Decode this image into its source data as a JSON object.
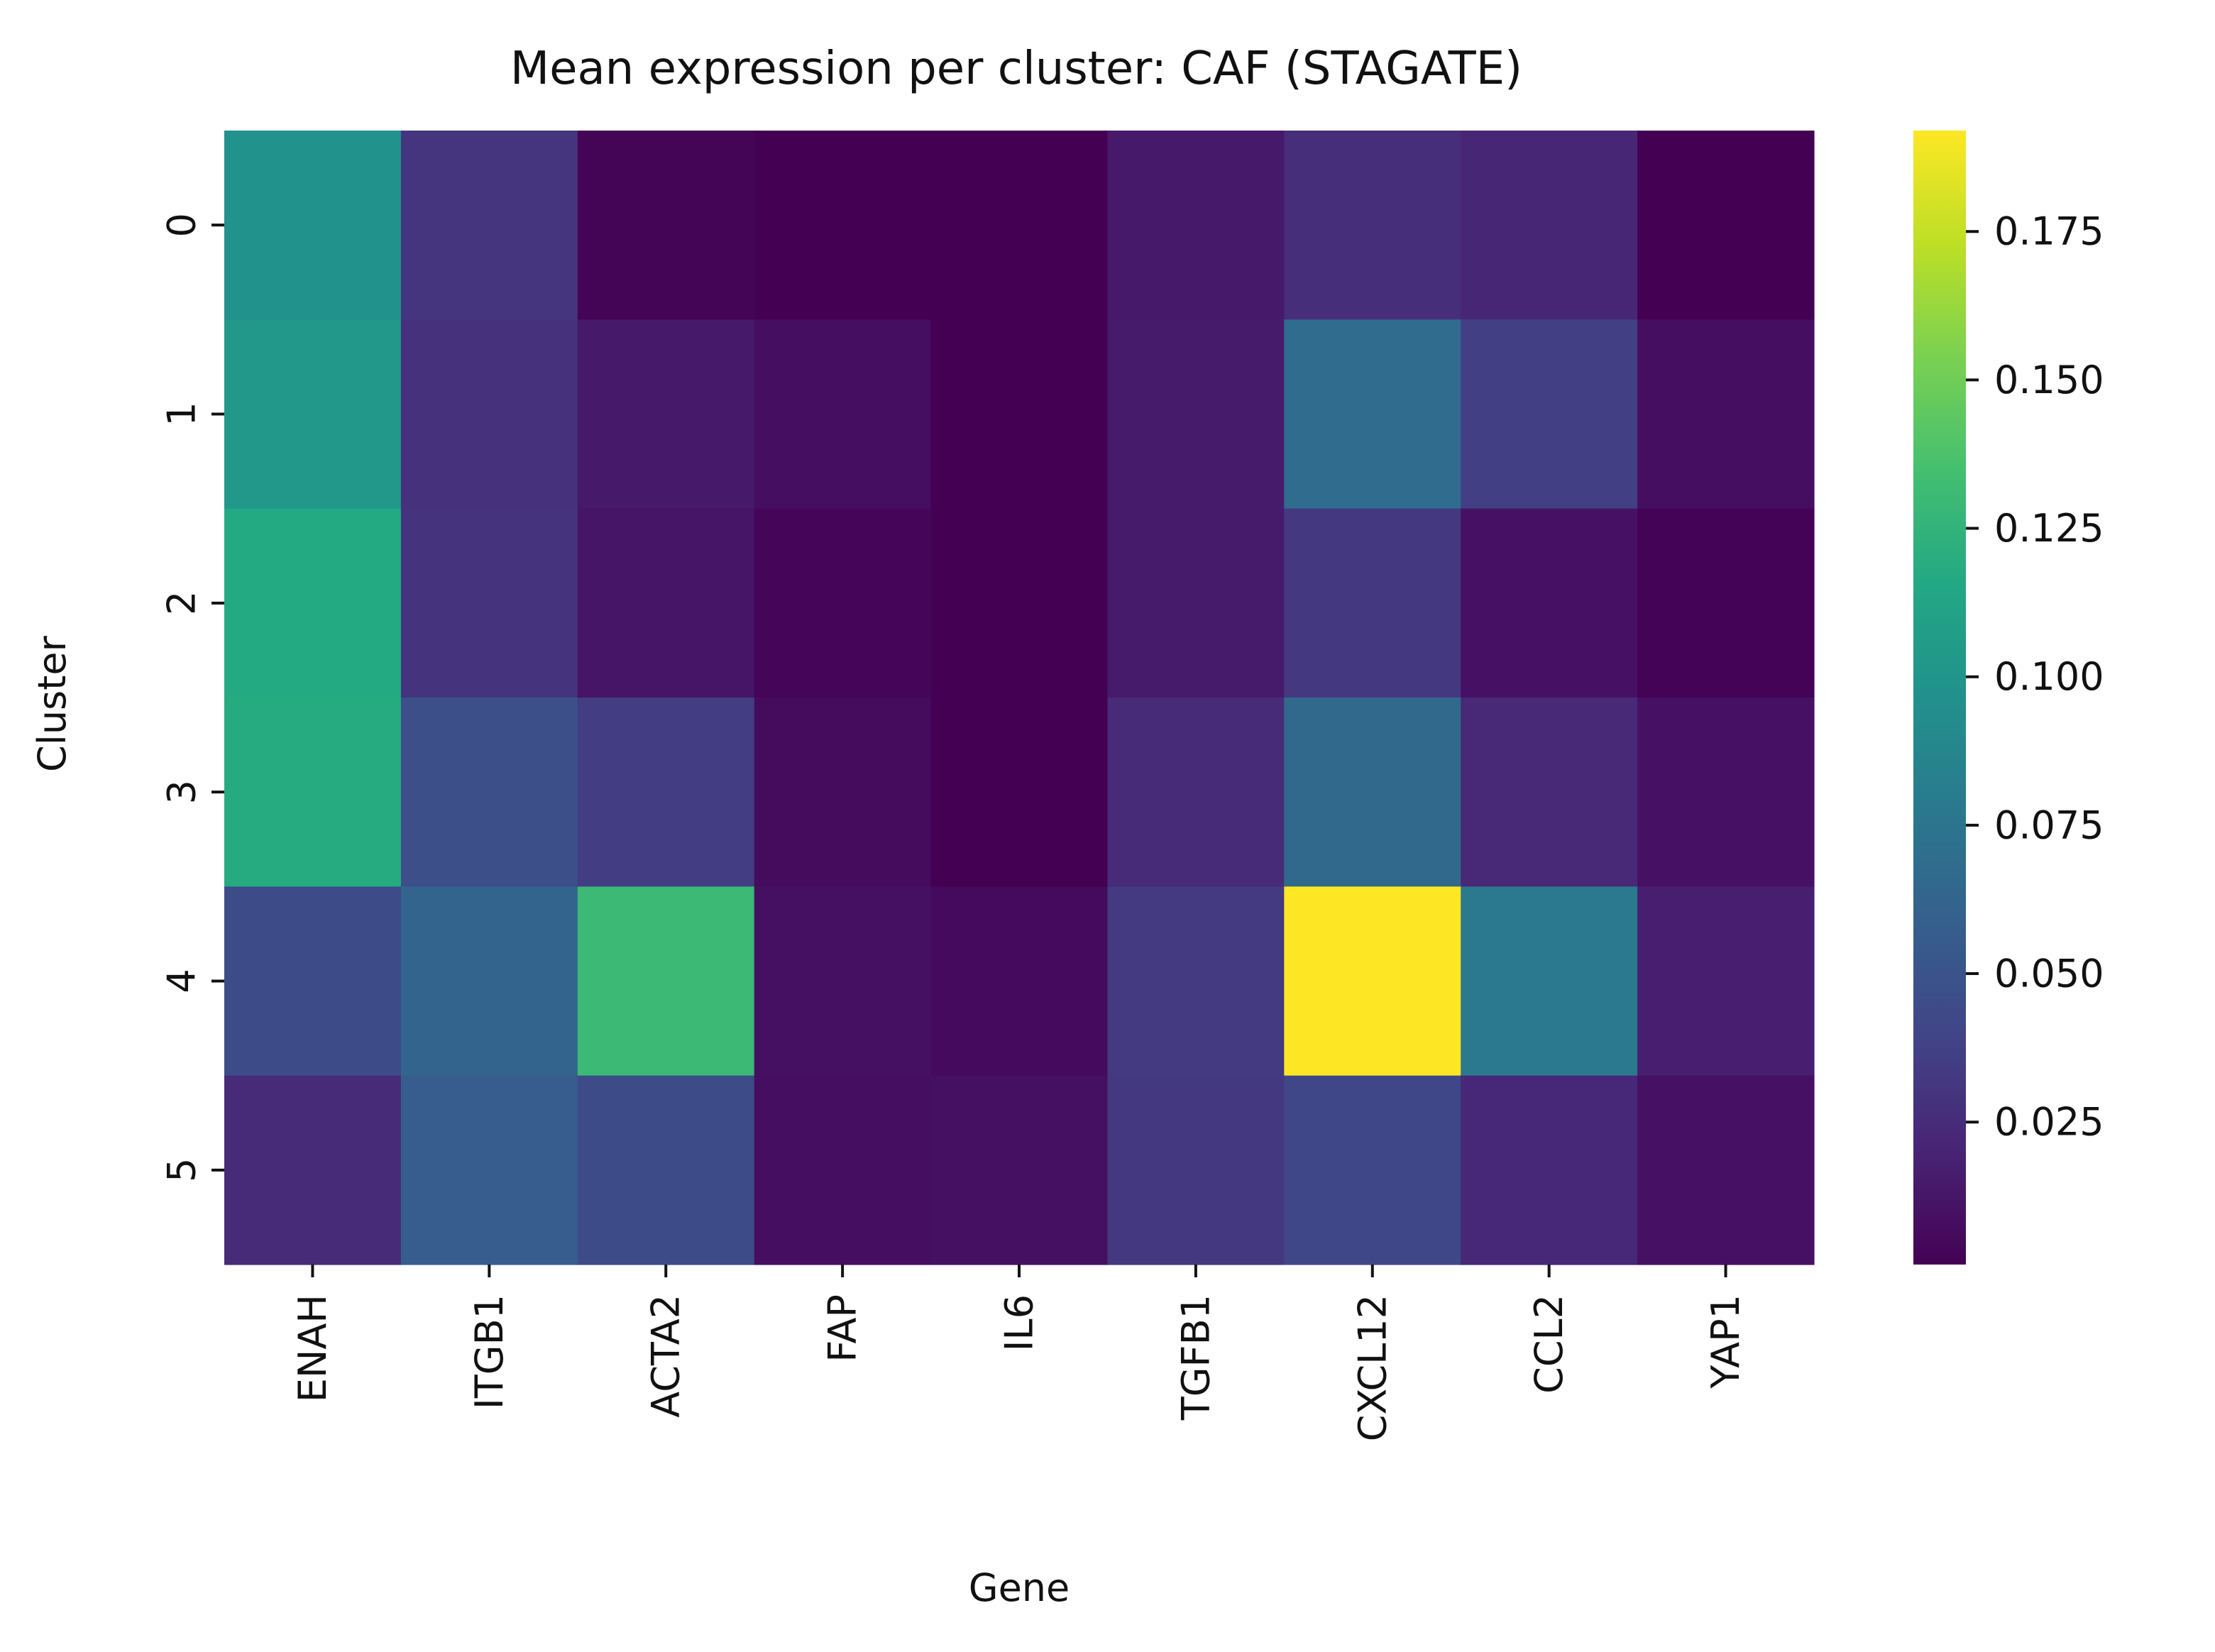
{
  "chart_data": {
    "type": "heatmap",
    "title": "Mean expression per cluster: CAF (STAGATE)",
    "xlabel": "Gene",
    "ylabel": "Cluster",
    "x_categories": [
      "ENAH",
      "ITGB1",
      "ACTA2",
      "FAP",
      "IL6",
      "TGFB1",
      "CXCL12",
      "CCL2",
      "YAP1"
    ],
    "y_categories": [
      "0",
      "1",
      "2",
      "3",
      "4",
      "5"
    ],
    "values": [
      [
        0.097,
        0.03,
        0.003,
        0.001,
        0.001,
        0.014,
        0.026,
        0.021,
        0.001
      ],
      [
        0.102,
        0.028,
        0.014,
        0.008,
        0.001,
        0.015,
        0.068,
        0.036,
        0.008
      ],
      [
        0.117,
        0.029,
        0.012,
        0.004,
        0.001,
        0.015,
        0.032,
        0.01,
        0.002
      ],
      [
        0.118,
        0.047,
        0.035,
        0.007,
        0.001,
        0.024,
        0.066,
        0.023,
        0.01
      ],
      [
        0.044,
        0.062,
        0.13,
        0.009,
        0.006,
        0.033,
        0.192,
        0.078,
        0.017
      ],
      [
        0.024,
        0.057,
        0.044,
        0.008,
        0.009,
        0.032,
        0.041,
        0.022,
        0.01
      ]
    ],
    "color_scale": "viridis",
    "vmin": 0.001,
    "vmax": 0.192,
    "colorbar": {
      "ticks": [
        0.025,
        0.05,
        0.075,
        0.1,
        0.125,
        0.15,
        0.175
      ],
      "tick_labels": [
        "0.025",
        "0.050",
        "0.075",
        "0.100",
        "0.125",
        "0.150",
        "0.175"
      ]
    }
  }
}
